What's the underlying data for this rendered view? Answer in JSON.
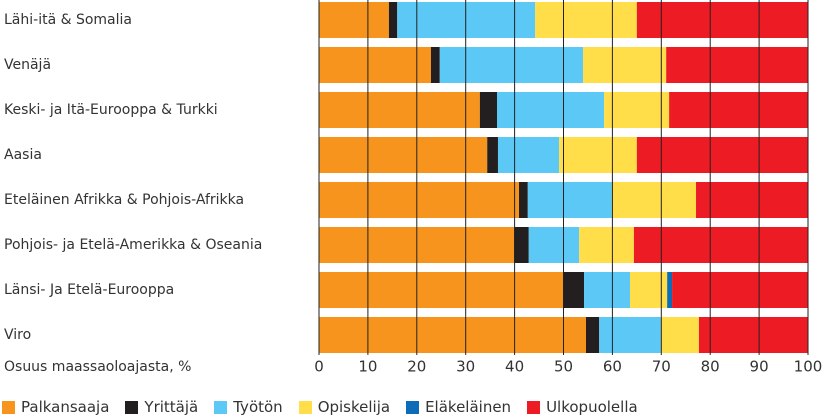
{
  "chart_data": {
    "type": "stacked-bar-horizontal",
    "categories": [
      "Lähi-itä & Somalia",
      "Venäjä",
      "Keski- ja Itä-Eurooppa & Turkki",
      "Aasia",
      "Eteläinen Afrikka & Pohjois-Afrikka",
      "Pohjois- ja Etelä-Amerikka & Oseania",
      "Länsi- Ja Etelä-Eurooppa",
      "Viro"
    ],
    "series": [
      {
        "name": "Palkansaaja",
        "color": "#f7941d",
        "values": [
          14.3,
          22.9,
          32.9,
          34.4,
          40.9,
          39.9,
          49.9,
          54.6
        ]
      },
      {
        "name": "Yrittäjä",
        "color": "#231f20",
        "values": [
          1.7,
          1.8,
          3.5,
          2.2,
          1.8,
          3.0,
          4.3,
          2.7
        ]
      },
      {
        "name": "Työtön",
        "color": "#5bc8f5",
        "values": [
          28.2,
          29.3,
          21.9,
          12.5,
          17.2,
          10.3,
          9.4,
          12.6
        ]
      },
      {
        "name": "Opiskelija",
        "color": "#ffde4a",
        "values": [
          20.8,
          17.0,
          13.3,
          15.9,
          17.2,
          11.2,
          7.6,
          7.8
        ]
      },
      {
        "name": "Eläkeläinen",
        "color": "#0c6cb8",
        "values": [
          0,
          0,
          0,
          0,
          0,
          0,
          1.0,
          0
        ]
      },
      {
        "name": "Ulkopuolella",
        "color": "#ed1c24",
        "values": [
          35.0,
          29.0,
          28.4,
          35.0,
          22.9,
          35.6,
          27.8,
          22.3
        ]
      }
    ],
    "xlabel": "Osuus maassaoloajasta, %",
    "xlim": [
      0,
      100
    ],
    "xticks": [
      0,
      10,
      20,
      30,
      40,
      50,
      60,
      70,
      80,
      90,
      100
    ],
    "grid": true
  }
}
